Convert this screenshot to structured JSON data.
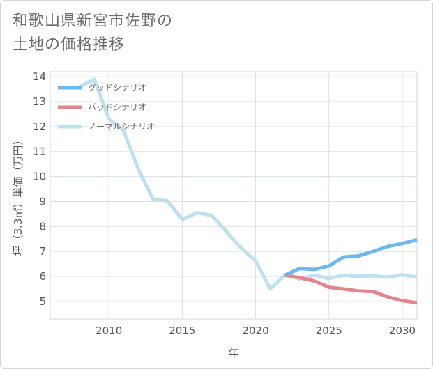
{
  "title_line1": "和歌山県新宮市佐野の",
  "title_line2": "土地の価格推移",
  "chart_data": {
    "type": "line",
    "title": "和歌山県新宮市佐野の土地の価格推移",
    "xlabel": "年",
    "ylabel": "坪（3.3㎡）単価（万円）",
    "xlim": [
      2006,
      2031
    ],
    "ylim": [
      4.3,
      14.2
    ],
    "x_ticks": [
      2010,
      2015,
      2020,
      2025,
      2030
    ],
    "y_ticks": [
      5,
      6,
      7,
      8,
      9,
      10,
      11,
      12,
      13,
      14
    ],
    "grid": true,
    "legend_position": "top-left",
    "series": [
      {
        "name": "グッドシナリオ",
        "color": "#6cb8ef",
        "x": [
          2022,
          2023,
          2024,
          2025,
          2026,
          2027,
          2028,
          2029,
          2030,
          2031
        ],
        "y": [
          6.05,
          6.32,
          6.28,
          6.42,
          6.78,
          6.82,
          7.0,
          7.2,
          7.32,
          7.47
        ]
      },
      {
        "name": "バッドシナリオ",
        "color": "#e0868f",
        "x": [
          2022,
          2023,
          2024,
          2025,
          2026,
          2027,
          2028,
          2029,
          2030,
          2031
        ],
        "y": [
          6.05,
          5.95,
          5.82,
          5.57,
          5.5,
          5.42,
          5.4,
          5.18,
          5.03,
          4.95
        ]
      },
      {
        "name": "ノーマルシナリオ",
        "color": "#bfe0ee",
        "x": [
          2008,
          2009,
          2010,
          2011,
          2012,
          2013,
          2014,
          2015,
          2016,
          2017,
          2018,
          2019,
          2020,
          2021,
          2022,
          2023,
          2024,
          2025,
          2026,
          2027,
          2028,
          2029,
          2030,
          2031
        ],
        "y": [
          13.6,
          13.9,
          12.3,
          11.85,
          10.3,
          9.1,
          9.02,
          8.28,
          8.55,
          8.45,
          7.8,
          7.15,
          6.62,
          5.5,
          6.05,
          5.9,
          6.05,
          5.92,
          6.05,
          6.0,
          6.03,
          5.97,
          6.07,
          5.97
        ]
      }
    ]
  }
}
